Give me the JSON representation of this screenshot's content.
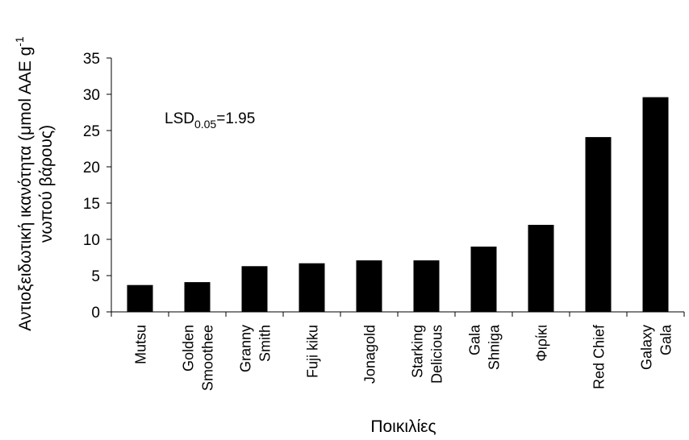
{
  "chart_data": {
    "type": "bar",
    "ylabel_line1": "Αντιοξειδωτική ικανότητα (μmol AAE g",
    "ylabel_sup": "-1",
    "ylabel_line2": "νωπού βάρους)",
    "xlabel": "Ποικιλίες",
    "ylim": [
      0,
      35
    ],
    "yticks": [
      "0",
      "5",
      "10",
      "15",
      "20",
      "25",
      "30",
      "35"
    ],
    "grid": false,
    "categories": [
      [
        "Mutsu"
      ],
      [
        "Golden",
        "Smoothee"
      ],
      [
        "Granny",
        "Smith"
      ],
      [
        "Fuji kiku"
      ],
      [
        "Jonagold"
      ],
      [
        "Starking",
        "Delicious"
      ],
      [
        "Gala",
        "Shniga"
      ],
      [
        "Φιρίκι"
      ],
      [
        "Red Chief"
      ],
      [
        "Galaxy",
        "Gala"
      ]
    ],
    "values": [
      3.7,
      4.1,
      6.3,
      6.7,
      7.1,
      7.1,
      9.0,
      12.0,
      24.1,
      29.6
    ],
    "bar_color": "#000000",
    "annotation": {
      "prefix": "LSD",
      "subscript": "0.05",
      "suffix": "=1.95"
    }
  }
}
